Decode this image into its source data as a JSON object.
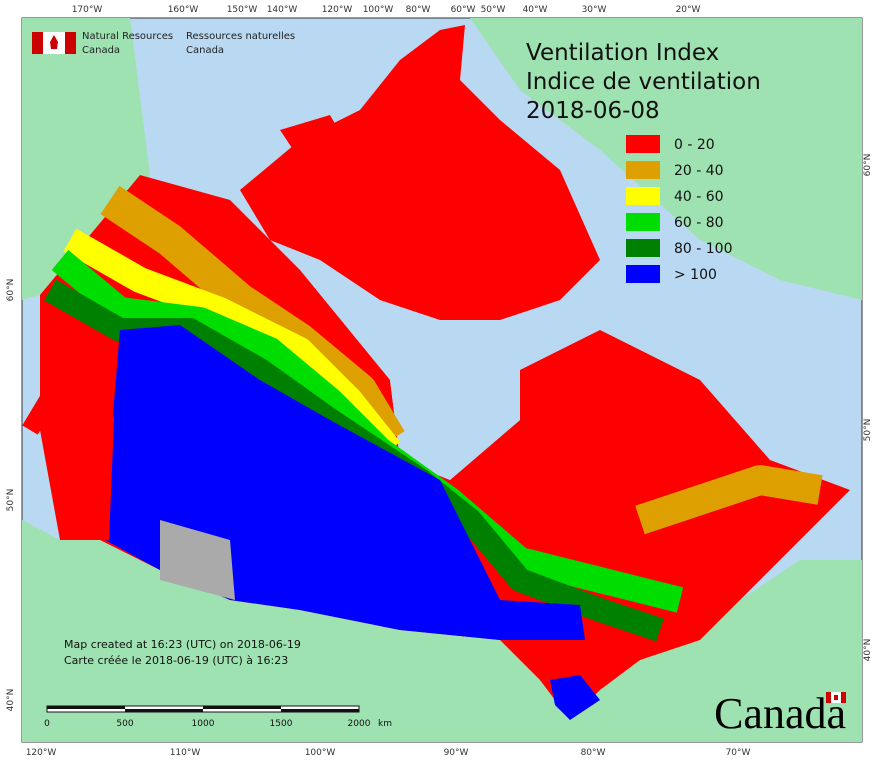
{
  "header": {
    "agency_en": [
      "Natural Resources",
      "Canada"
    ],
    "agency_fr": [
      "Ressources naturelles",
      "Canada"
    ]
  },
  "title": {
    "line1": "Ventilation Index",
    "line2": "Indice de ventilation",
    "date": "2018-06-08"
  },
  "legend": [
    {
      "label": "0 - 20",
      "color": "#ff0000"
    },
    {
      "label": "20 - 40",
      "color": "#dda000"
    },
    {
      "label": "40 - 60",
      "color": "#ffff00"
    },
    {
      "label": "60 - 80",
      "color": "#00dd00"
    },
    {
      "label": "80 - 100",
      "color": "#008000"
    },
    {
      "label": "> 100",
      "color": "#0000ff"
    }
  ],
  "graticule": {
    "top": [
      "170°W",
      "160°W",
      "150°W",
      "140°W",
      "120°W",
      "100°W",
      "80°W",
      "60°W",
      "50°W",
      "40°W",
      "30°W",
      "20°W"
    ],
    "bottom": [
      "120°W",
      "110°W",
      "100°W",
      "90°W",
      "80°W",
      "70°W"
    ],
    "left": [
      "60°N",
      "50°N",
      "40°N"
    ],
    "right": [
      "60°N",
      "50°N",
      "40°N"
    ]
  },
  "credits": [
    "Map created at 16:23 (UTC) on 2018-06-19",
    "Carte créée le 2018-06-19 (UTC) à 16:23"
  ],
  "scale_bar": {
    "labels": [
      "0",
      "500",
      "1000",
      "1500",
      "2000"
    ],
    "unit": "km"
  },
  "wordmark": "Canada"
}
